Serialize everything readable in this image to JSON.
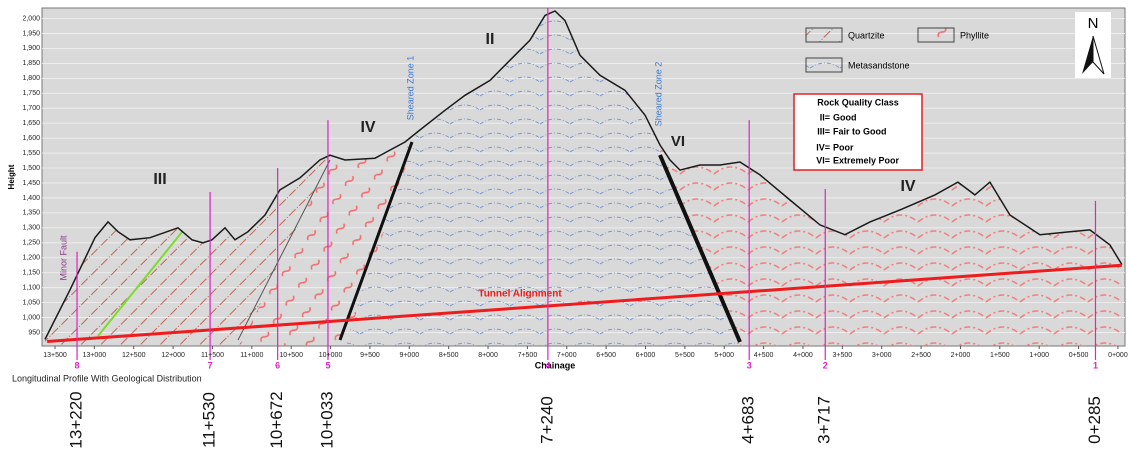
{
  "chart_data": {
    "type": "line",
    "x_axis_label": "Chainage",
    "y_axis_label": "Height",
    "caption": "Longitudinal Profile With Geological Distribution",
    "xlim": [
      13665,
      -90
    ],
    "ylim": [
      905,
      2035
    ],
    "xticks": [
      {
        "value": 13500,
        "label": "13+500"
      },
      {
        "value": 13000,
        "label": "13+000"
      },
      {
        "value": 12500,
        "label": "12+500"
      },
      {
        "value": 12000,
        "label": "12+000"
      },
      {
        "value": 11500,
        "label": "11+500"
      },
      {
        "value": 11000,
        "label": "11+000"
      },
      {
        "value": 10500,
        "label": "10+500"
      },
      {
        "value": 10000,
        "label": "10+000"
      },
      {
        "value": 9500,
        "label": "9+500"
      },
      {
        "value": 9000,
        "label": "9+000"
      },
      {
        "value": 8500,
        "label": "8+500"
      },
      {
        "value": 8000,
        "label": "8+000"
      },
      {
        "value": 7500,
        "label": "7+500"
      },
      {
        "value": 7000,
        "label": "7+000"
      },
      {
        "value": 6500,
        "label": "6+500"
      },
      {
        "value": 6000,
        "label": "6+000"
      },
      {
        "value": 5500,
        "label": "5+500"
      },
      {
        "value": 5000,
        "label": "5+000"
      },
      {
        "value": 4500,
        "label": "4+500"
      },
      {
        "value": 4000,
        "label": "4+000"
      },
      {
        "value": 3500,
        "label": "3+500"
      },
      {
        "value": 3000,
        "label": "3+000"
      },
      {
        "value": 2500,
        "label": "2+500"
      },
      {
        "value": 2000,
        "label": "2+000"
      },
      {
        "value": 1500,
        "label": "1+500"
      },
      {
        "value": 1000,
        "label": "1+000"
      },
      {
        "value": 500,
        "label": "0+500"
      },
      {
        "value": 0,
        "label": "0+000"
      }
    ],
    "yticks": [
      950,
      {
        "value": 1000,
        "label": "1,000"
      },
      {
        "value": 1050,
        "label": "1,050"
      },
      {
        "value": 1100,
        "label": "1,100"
      },
      {
        "value": 1150,
        "label": "1,150"
      },
      {
        "value": 1200,
        "label": "1,200"
      },
      {
        "value": 1250,
        "label": "1,250"
      },
      {
        "value": 1300,
        "label": "1,300"
      },
      {
        "value": 1350,
        "label": "1,350"
      },
      {
        "value": 1400,
        "label": "1,400"
      },
      {
        "value": 1450,
        "label": "1,450"
      },
      {
        "value": 1500,
        "label": "1,500"
      },
      {
        "value": 1550,
        "label": "1,550"
      },
      {
        "value": 1600,
        "label": "1,600"
      },
      {
        "value": 1650,
        "label": "1,650"
      },
      {
        "value": 1700,
        "label": "1,700"
      },
      {
        "value": 1750,
        "label": "1,750"
      },
      {
        "value": 1800,
        "label": "1,800"
      },
      {
        "value": 1850,
        "label": "1,850"
      },
      {
        "value": 1900,
        "label": "1,900"
      },
      {
        "value": 1950,
        "label": "1,950"
      },
      {
        "value": 2000,
        "label": "2,000"
      }
    ],
    "grid": true,
    "x": [
      13627,
      13310,
      12992,
      12827,
      12700,
      12547,
      12293,
      11938,
      11760,
      11620,
      11506,
      11341,
      11214,
      11049,
      10833,
      10643,
      10389,
      10135,
      10008,
      9817,
      9436,
      9055,
      8865,
      8547,
      8293,
      7975,
      7722,
      7468,
      7277,
      7150,
      7023,
      6832,
      6578,
      6261,
      6007,
      5816,
      5689,
      5562,
      5308,
      5054,
      4800,
      4546,
      4165,
      3784,
      3467,
      3149,
      2768,
      2324,
      2032,
      1816,
      1626,
      1372,
      991,
      610,
      356,
      102,
      -50
    ],
    "series": [
      {
        "color": "#1a1a1a",
        "values": [
          927,
          1093,
          1267,
          1320,
          1287,
          1260,
          1267,
          1300,
          1260,
          1250,
          1260,
          1300,
          1260,
          1287,
          1343,
          1427,
          1467,
          1527,
          1543,
          1527,
          1533,
          1587,
          1627,
          1693,
          1743,
          1793,
          1860,
          1927,
          2010,
          2025,
          1993,
          1877,
          1810,
          1760,
          1677,
          1577,
          1527,
          1493,
          1510,
          1510,
          1520,
          1477,
          1393,
          1310,
          1277,
          1320,
          1360,
          1410,
          1453,
          1410,
          1453,
          1343,
          1277,
          1287,
          1293,
          1243,
          1177
        ]
      }
    ],
    "tunnel": {
      "name": "Tunnel Alignment",
      "color": "#ee1c1c",
      "x": [
        13600,
        -50
      ],
      "values": [
        920,
        1175
      ]
    },
    "boreholes": [
      {
        "number": "8",
        "chainage": {
          "value": 13220,
          "label": "13+220"
        },
        "top": 1220
      },
      {
        "number": "7",
        "chainage": {
          "value": 11530,
          "label": "11+530"
        },
        "top": 1420
      },
      {
        "number": "6",
        "chainage": {
          "value": 10672,
          "label": "10+672"
        },
        "top": 1500
      },
      {
        "number": "5",
        "chainage": {
          "value": 10033,
          "label": "10+033"
        },
        "top": 1660
      },
      {
        "number": "4",
        "chainage": {
          "value": 7240,
          "label": "7+240"
        },
        "top": 2035
      },
      {
        "number": "3",
        "chainage": {
          "value": 4683,
          "label": "4+683"
        },
        "top": 1660
      },
      {
        "number": "2",
        "chainage": {
          "value": 3717,
          "label": "3+717"
        },
        "top": 1430
      },
      {
        "number": "1",
        "chainage": {
          "value": 285,
          "label": "0+285"
        },
        "top": 1390
      }
    ],
    "zones": [
      "II",
      "III",
      "IV",
      "IV",
      "VI"
    ],
    "faults": [
      "Sheared Zone 1",
      "Sheared Zone 2",
      "Minor Fault"
    ],
    "legend": [
      "Quartzite",
      "Phyllite",
      "Metasandstone"
    ],
    "north": "N",
    "rock_quality": {
      "title": "Rock Quality Class",
      "rows": [
        {
          "class": "II=",
          "desc": "Good"
        },
        {
          "class": "III=",
          "desc": "Fair to Good"
        },
        {
          "class": "IV=",
          "desc": "Poor"
        },
        {
          "class": "VI=",
          "desc": "Extremely Poor"
        }
      ]
    }
  }
}
